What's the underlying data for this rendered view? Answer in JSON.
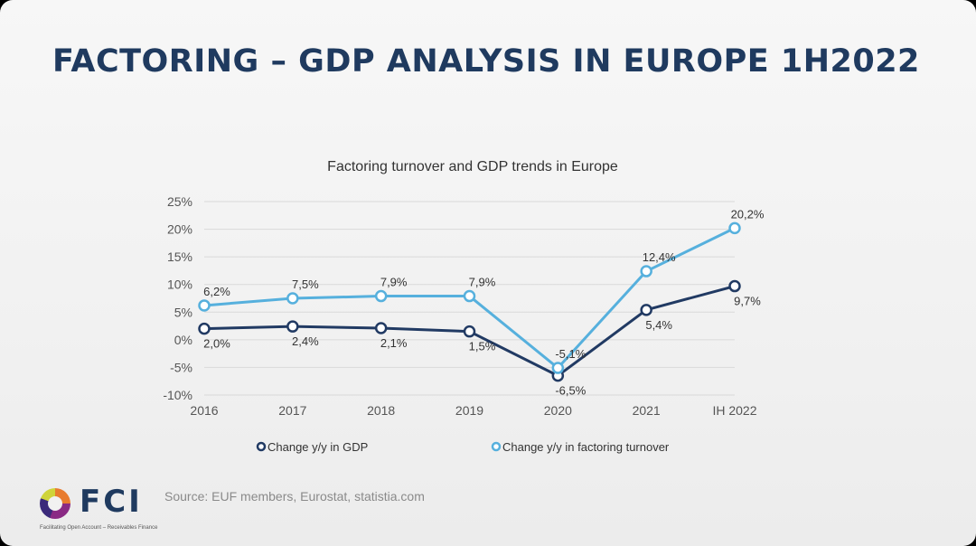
{
  "slide": {
    "title": "FACTORING – GDP ANALYSIS IN EUROPE 1H2022",
    "source": "Source: EUF members, Eurostat, statistia.com",
    "logo": {
      "name": "FCI",
      "tagline": "Facilitating Open Account – Receivables Finance"
    }
  },
  "chart_data": {
    "type": "line",
    "title": "Factoring turnover and GDP trends in Europe",
    "categories": [
      "2016",
      "2017",
      "2018",
      "2019",
      "2020",
      "2021",
      "IH 2022"
    ],
    "ylim": [
      -10,
      25
    ],
    "yticks": [
      25,
      20,
      15,
      10,
      5,
      0,
      -5,
      -10
    ],
    "ytick_labels": [
      "25%",
      "20%",
      "15%",
      "10%",
      "5%",
      "0%",
      "-5%",
      "-10%"
    ],
    "grid": true,
    "legend_position": "bottom",
    "series": [
      {
        "name": "Change y/y in GDP",
        "color": "#213a63",
        "values": [
          2.0,
          2.4,
          2.1,
          1.5,
          -6.5,
          5.4,
          9.7
        ],
        "labels": [
          "2,0%",
          "2,4%",
          "2,1%",
          "1,5%",
          "-6,5%",
          "5,4%",
          "9,7%"
        ],
        "label_positions": [
          "below",
          "below",
          "below",
          "below",
          "below",
          "below",
          "below"
        ]
      },
      {
        "name": "Change y/y in factoring turnover",
        "color": "#56b0dd",
        "values": [
          6.2,
          7.5,
          7.9,
          7.9,
          -5.1,
          12.4,
          20.2
        ],
        "labels": [
          "6,2%",
          "7,5%",
          "7,9%",
          "7,9%",
          "-5,1%",
          "12,4%",
          "20,2%"
        ],
        "label_positions": [
          "above",
          "above",
          "above",
          "above",
          "above",
          "above",
          "above"
        ]
      }
    ]
  }
}
